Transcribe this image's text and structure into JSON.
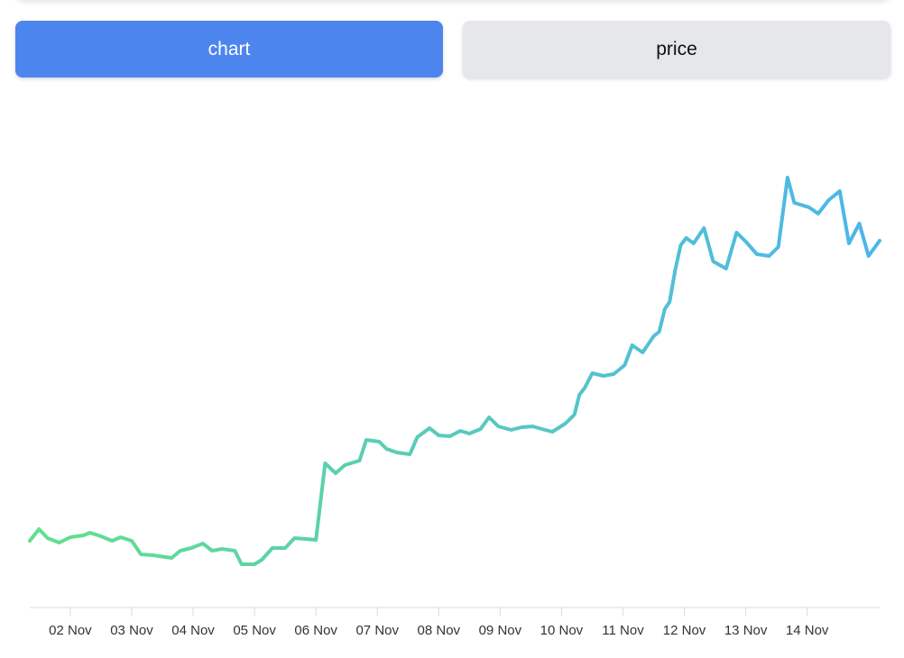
{
  "tabs": [
    "chart",
    "price"
  ],
  "chart_data": {
    "type": "line",
    "x": [
      1.34,
      1.49,
      1.63,
      1.82,
      2.0,
      2.21,
      2.32,
      2.5,
      2.68,
      2.82,
      3.0,
      3.15,
      3.35,
      3.65,
      3.79,
      3.97,
      4.16,
      4.31,
      4.47,
      4.68,
      4.79,
      5.0,
      5.12,
      5.29,
      5.5,
      5.65,
      5.85,
      6.0,
      6.15,
      6.32,
      6.47,
      6.71,
      6.82,
      7.03,
      7.15,
      7.32,
      7.53,
      7.65,
      7.85,
      8.0,
      8.18,
      8.35,
      8.5,
      8.68,
      8.82,
      8.97,
      9.18,
      9.35,
      9.53,
      9.68,
      9.85,
      10.06,
      10.21,
      10.29,
      10.38,
      10.5,
      10.68,
      10.85,
      11.03,
      11.15,
      11.32,
      11.5,
      11.59,
      11.68,
      11.76,
      11.85,
      11.94,
      12.03,
      12.15,
      12.32,
      12.47,
      12.68,
      12.85,
      13.0,
      13.18,
      13.38,
      13.53,
      13.68,
      13.79,
      14.03,
      14.18,
      14.35,
      14.53,
      14.68,
      14.85,
      15.0,
      15.18
    ],
    "values": [
      100,
      113,
      103,
      98,
      104,
      106,
      109,
      105,
      100,
      104,
      100,
      85,
      84,
      81,
      89,
      92,
      97,
      89,
      91,
      89,
      74,
      74,
      79,
      92,
      92,
      103,
      102,
      101,
      186,
      175,
      184,
      189,
      212,
      210,
      202,
      198,
      196,
      215,
      225,
      217,
      216,
      222,
      219,
      224,
      237,
      227,
      223,
      226,
      227,
      224,
      221,
      230,
      240,
      262,
      270,
      286,
      283,
      285,
      295,
      317,
      309,
      327,
      332,
      357,
      365,
      400,
      428,
      436,
      430,
      447,
      410,
      402,
      442,
      432,
      418,
      416,
      426,
      503,
      475,
      470,
      463,
      478,
      488,
      430,
      452,
      416,
      433
    ],
    "xlim": [
      1.34,
      15.18
    ],
    "xticks": [
      {
        "value": 2,
        "label": "02 Nov"
      },
      {
        "value": 3,
        "label": "03 Nov"
      },
      {
        "value": 4,
        "label": "04 Nov"
      },
      {
        "value": 5,
        "label": "05 Nov"
      },
      {
        "value": 6,
        "label": "06 Nov"
      },
      {
        "value": 7,
        "label": "07 Nov"
      },
      {
        "value": 8,
        "label": "08 Nov"
      },
      {
        "value": 9,
        "label": "09 Nov"
      },
      {
        "value": 10,
        "label": "10 Nov"
      },
      {
        "value": 11,
        "label": "11 Nov"
      },
      {
        "value": 12,
        "label": "12 Nov"
      },
      {
        "value": 13,
        "label": "13 Nov"
      },
      {
        "value": 14,
        "label": "14 Nov"
      }
    ],
    "gradient": [
      "#62e08c",
      "#4cb5ec"
    ]
  }
}
